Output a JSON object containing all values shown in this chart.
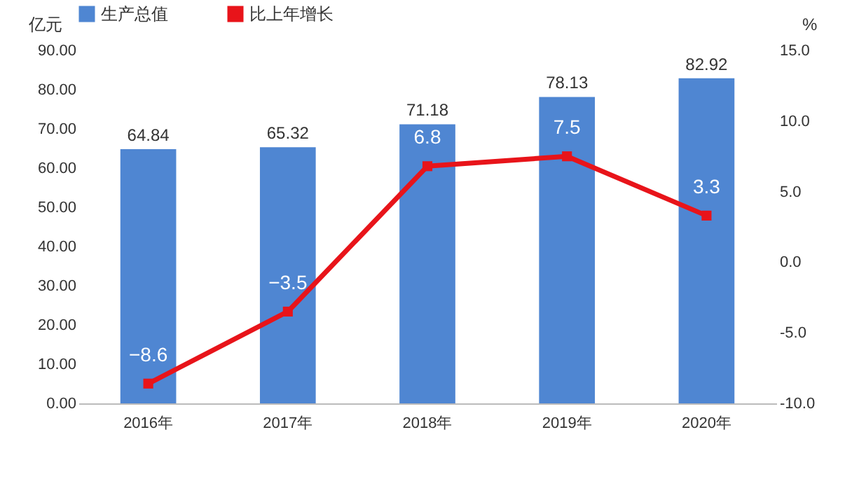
{
  "chart_data": {
    "type": "bar",
    "categories": [
      "2016年",
      "2017年",
      "2018年",
      "2019年",
      "2020年"
    ],
    "series": [
      {
        "name": "生产总值",
        "type": "bar",
        "color": "#4f86d2",
        "values": [
          64.84,
          65.32,
          71.18,
          78.13,
          82.92
        ]
      },
      {
        "name": "比上年增长",
        "type": "line",
        "axis": "y2",
        "color": "#e8141a",
        "values": [
          -8.6,
          -3.5,
          6.8,
          7.5,
          3.3
        ]
      }
    ],
    "ylabel": "亿元",
    "y2label": "%",
    "ylim": [
      0,
      90
    ],
    "yticks": [
      {
        "value": 0,
        "label": "0.00"
      },
      {
        "value": 10,
        "label": "10.00"
      },
      {
        "value": 20,
        "label": "20.00"
      },
      {
        "value": 30,
        "label": "30.00"
      },
      {
        "value": 40,
        "label": "40.00"
      },
      {
        "value": 50,
        "label": "50.00"
      },
      {
        "value": 60,
        "label": "60.00"
      },
      {
        "value": 70,
        "label": "70.00"
      },
      {
        "value": 80,
        "label": "80.00"
      },
      {
        "value": 90,
        "label": "90.00"
      }
    ],
    "y2lim": [
      -10,
      15
    ],
    "y2ticks": [
      {
        "value": -10,
        "label": "-10.0"
      },
      {
        "value": -5,
        "label": "-5.0"
      },
      {
        "value": 0,
        "label": "0.0"
      },
      {
        "value": 5,
        "label": "5.0"
      },
      {
        "value": 10,
        "label": "10.0"
      },
      {
        "value": 15,
        "label": "15.0"
      }
    ],
    "data_labels": true,
    "legend": "top",
    "marker": "square",
    "line_style": "solid",
    "grid": false
  }
}
